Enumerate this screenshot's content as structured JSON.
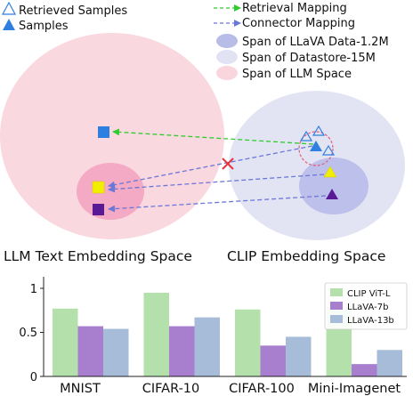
{
  "legend": {
    "items": [
      {
        "label": "Retrieved Samples",
        "icon": "hollow-triangle-icon",
        "color": "#2f7fe0"
      },
      {
        "label": "Samples",
        "icon": "filled-triangle-icon",
        "color": "#2f7fe0"
      },
      {
        "label": "Retrieval Mapping",
        "icon": "green-dashed-arrow-icon",
        "color": "#2ecc2e"
      },
      {
        "label": "Connector Mapping",
        "icon": "blue-dashed-arrow-icon",
        "color": "#6b78d8"
      },
      {
        "label": "Span of LLaVA Data-1.2M",
        "icon": "purple-ellipse-icon",
        "color": "#b8bde8"
      },
      {
        "label": "Span of Datastore-15M",
        "icon": "lavender-ellipse-icon",
        "color": "#e1e3f5"
      },
      {
        "label": "Span of LLM Space",
        "icon": "pink-ellipse-icon",
        "color": "#f9d6de"
      }
    ]
  },
  "diagram": {
    "left_space_label": "LLM Text Embedding Space",
    "right_space_label": "CLIP Embedding Space",
    "colors": {
      "llm_space": "#f9d8e0",
      "llm_inner": "#f4a9c4",
      "clip_space": "#e2e4f4",
      "clip_inner": "#bcc0ea",
      "retrieval_arrow": "#2ecc2e",
      "connector_arrow": "#6b78d8",
      "blue_marker": "#2f7fe0",
      "yellow_marker": "#f2ee00",
      "purple_marker": "#5a1a96",
      "cross": "#e8303a",
      "query_circle": "#e85a74"
    }
  },
  "chart_data": {
    "type": "bar",
    "categories": [
      "MNIST",
      "CIFAR-10",
      "CIFAR-100",
      "Mini-Imagenet"
    ],
    "series": [
      {
        "name": "CLIP ViT-L",
        "values": [
          0.77,
          0.95,
          0.76,
          0.79
        ],
        "color": "#b3e0ab"
      },
      {
        "name": "LLaVA-7b",
        "values": [
          0.57,
          0.57,
          0.35,
          0.14
        ],
        "color": "#a87fcf"
      },
      {
        "name": "LLaVA-13b",
        "values": [
          0.54,
          0.67,
          0.45,
          0.3
        ],
        "color": "#a6bcd9"
      }
    ],
    "yticks": [
      "0",
      "0.5",
      "1"
    ],
    "ylim": [
      0,
      1.0
    ],
    "grid": false,
    "legend_position": "top-right"
  }
}
